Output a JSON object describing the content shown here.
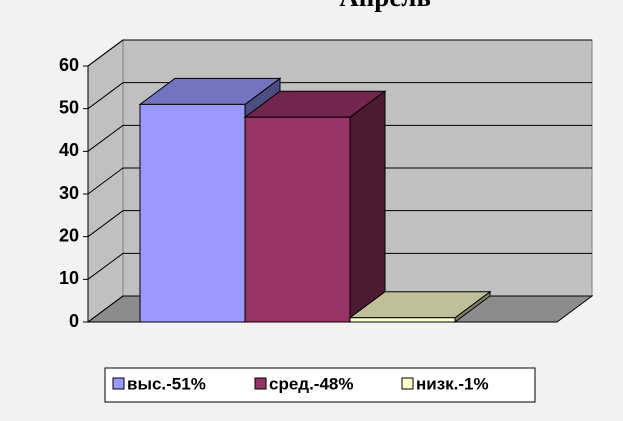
{
  "chart_data": {
    "type": "bar3d",
    "title": "Апрель",
    "categories": [
      null
    ],
    "series": [
      {
        "name": "выс.-51%",
        "color": "#9999ff",
        "values": [
          51
        ]
      },
      {
        "name": "сред.-48%",
        "color": "#993366",
        "values": [
          48
        ]
      },
      {
        "name": "низк.-1%",
        "color": "#ffffcc",
        "values": [
          1
        ]
      }
    ],
    "ylim": [
      0,
      60
    ],
    "yticks": [
      0,
      10,
      20,
      30,
      40,
      50,
      60
    ],
    "grid": true,
    "legend": "bottom"
  }
}
